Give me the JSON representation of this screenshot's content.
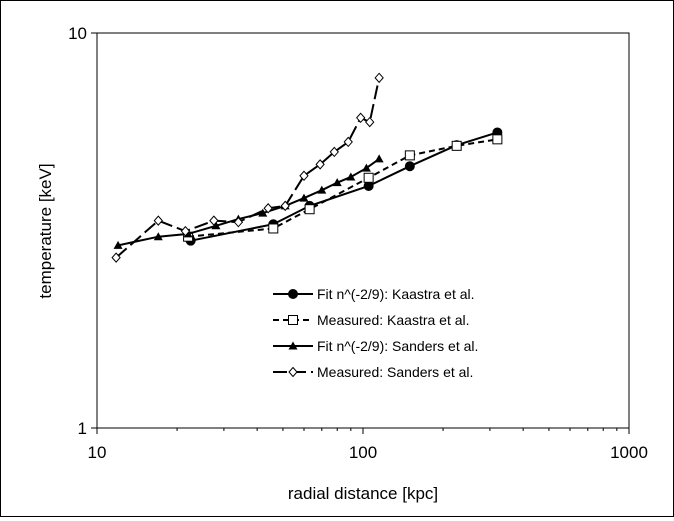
{
  "chart_data": {
    "type": "line",
    "xscale": "log",
    "yscale": "log",
    "xlim": [
      10,
      1000
    ],
    "ylim": [
      1,
      10
    ],
    "xlabel": "radial distance [kpc]",
    "ylabel": "temperature [keV]",
    "x_ticks": [
      "10",
      "100",
      "1000"
    ],
    "y_ticks": [
      "1",
      "10"
    ],
    "grid": false,
    "legend_position": "bottom-center inside plot",
    "series": [
      {
        "name": "Fit n^(-2/9): Kaastra et al.",
        "marker": "filled-circle",
        "line": "solid",
        "x": [
          22.5,
          46,
          63,
          105,
          150,
          225,
          320
        ],
        "y": [
          2.98,
          3.28,
          3.65,
          4.1,
          4.6,
          5.2,
          5.6
        ]
      },
      {
        "name": "Measured: Kaastra et al.",
        "marker": "open-square",
        "line": "dashed",
        "x": [
          22,
          46,
          63,
          105,
          150,
          225,
          320
        ],
        "y": [
          3.05,
          3.2,
          3.58,
          4.3,
          4.9,
          5.18,
          5.38
        ]
      },
      {
        "name": "Fit n^(-2/9):  Sanders et al.",
        "marker": "filled-triangle",
        "line": "solid",
        "x": [
          12,
          17,
          22,
          28,
          34,
          42,
          51,
          60,
          70,
          80,
          90,
          103,
          115
        ],
        "y": [
          2.9,
          3.05,
          3.1,
          3.25,
          3.38,
          3.5,
          3.65,
          3.82,
          4.0,
          4.18,
          4.32,
          4.55,
          4.8
        ]
      },
      {
        "name": "Measured: Sanders et al.",
        "marker": "open-diamond",
        "line": "long-dash",
        "x": [
          11.8,
          17,
          21.5,
          27.5,
          34,
          44,
          51,
          60,
          69,
          78,
          88,
          98,
          106,
          115
        ],
        "y": [
          2.7,
          3.35,
          3.15,
          3.35,
          3.32,
          3.6,
          3.65,
          4.35,
          4.65,
          5.0,
          5.3,
          6.1,
          5.95,
          7.7
        ]
      }
    ]
  }
}
